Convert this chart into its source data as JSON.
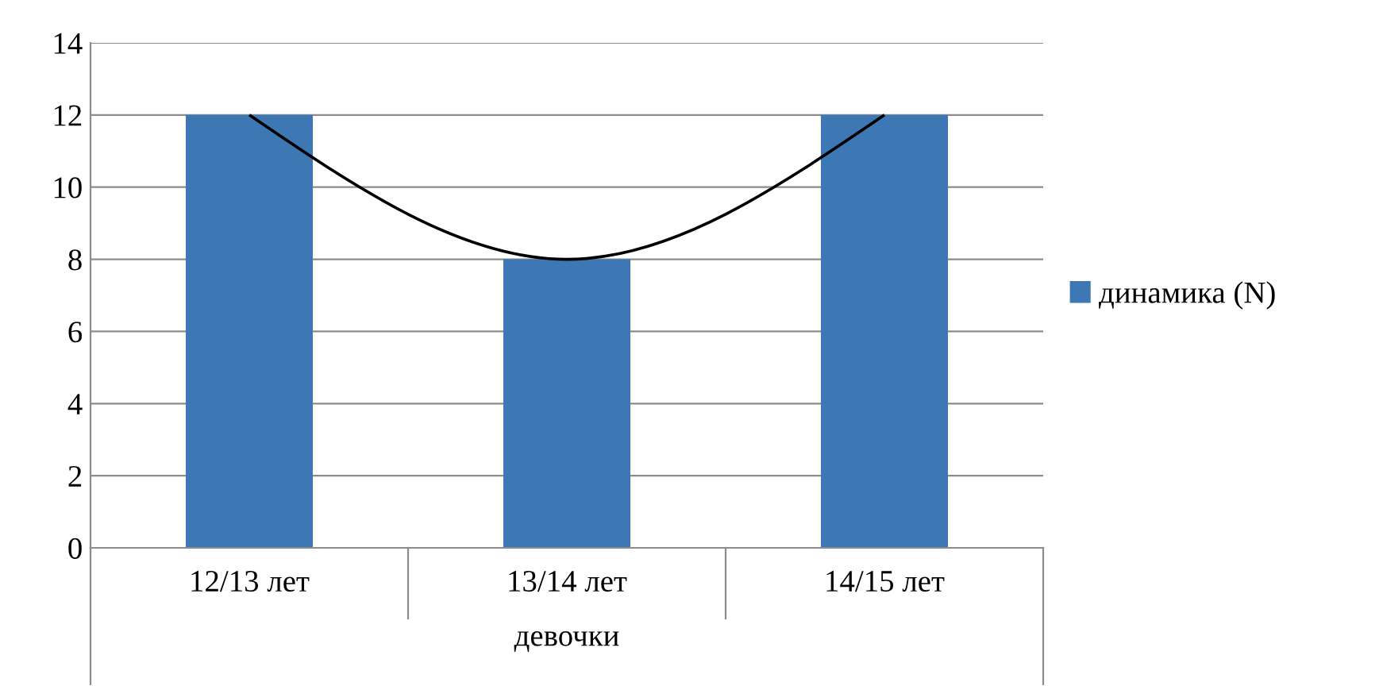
{
  "chart_data": {
    "type": "bar",
    "categories": [
      "12/13 лет",
      "13/14 лет",
      "14/15 лет"
    ],
    "xlabel": "девочки",
    "series": [
      {
        "name": "динамика (N)",
        "color": "#3d77b4",
        "values": [
          12,
          8,
          12
        ]
      },
      {
        "type": "line",
        "color": "#000000",
        "values": [
          12,
          8,
          12
        ]
      }
    ],
    "ylim": [
      0,
      14
    ],
    "yticks": [
      0,
      2,
      4,
      6,
      8,
      10,
      12,
      14
    ],
    "grid": "y",
    "legend": "right"
  }
}
